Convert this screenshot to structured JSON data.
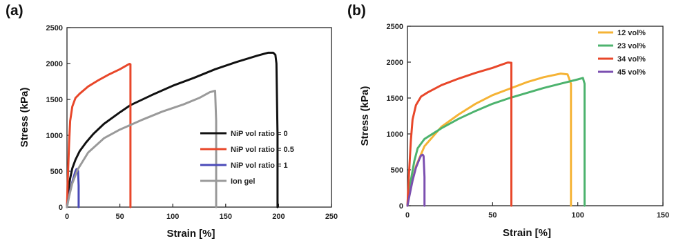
{
  "chart_data": [
    {
      "type": "line",
      "panel_label": "(a)",
      "xlabel": "Strain [%]",
      "ylabel": "Stress (kPa)",
      "xlim": [
        0,
        250
      ],
      "ylim": [
        0,
        2500
      ],
      "xticks": [
        0,
        50,
        100,
        150,
        200,
        250
      ],
      "xtick_labels": [
        "0",
        "50",
        "100",
        "150",
        "200",
        "250"
      ],
      "yticks": [
        0,
        500,
        1000,
        1500,
        2000,
        2500
      ],
      "ytick_labels": [
        "0",
        "500",
        "1000",
        "1500",
        "2000",
        "2500"
      ],
      "grid": false,
      "legend_position": "bottom-right",
      "series": [
        {
          "name": "NiP vol ratio = 0",
          "color": "#111111",
          "x": [
            0,
            1,
            3,
            5,
            8,
            12,
            18,
            25,
            35,
            50,
            60,
            80,
            100,
            120,
            140,
            160,
            180,
            190,
            195,
            197,
            198,
            199,
            199
          ],
          "y": [
            0,
            200,
            400,
            540,
            660,
            780,
            900,
            1020,
            1160,
            1320,
            1420,
            1560,
            1690,
            1800,
            1920,
            2020,
            2110,
            2150,
            2150,
            2120,
            2000,
            1000,
            0
          ]
        },
        {
          "name": "NiP vol ratio = 0.5",
          "color": "#e8472a",
          "x": [
            0,
            0.8,
            2,
            3,
            5,
            8,
            12,
            20,
            30,
            40,
            50,
            56,
            59,
            60,
            60
          ],
          "y": [
            0,
            400,
            900,
            1200,
            1400,
            1520,
            1580,
            1680,
            1770,
            1850,
            1920,
            1970,
            1995,
            1990,
            0
          ]
        },
        {
          "name": "NiP vol ratio = 1",
          "color": "#4a4ab8",
          "x": [
            0,
            1,
            3,
            5,
            7,
            8,
            9,
            10,
            10.5,
            11,
            11
          ],
          "y": [
            0,
            80,
            230,
            350,
            450,
            500,
            530,
            530,
            500,
            300,
            0
          ]
        },
        {
          "name": "Ion gel",
          "color": "#9a9a9a",
          "x": [
            0,
            2,
            5,
            10,
            20,
            35,
            50,
            70,
            90,
            110,
            125,
            135,
            140,
            141,
            141
          ],
          "y": [
            0,
            150,
            330,
            520,
            760,
            960,
            1080,
            1210,
            1330,
            1430,
            1520,
            1600,
            1620,
            1200,
            0
          ]
        }
      ]
    },
    {
      "type": "line",
      "panel_label": "(b)",
      "xlabel": "Strain [%]",
      "ylabel": "Stress (kPa)",
      "xlim": [
        0,
        150
      ],
      "ylim": [
        0,
        2500
      ],
      "xticks": [
        0,
        50,
        100,
        150
      ],
      "xtick_labels": [
        "0",
        "50",
        "100",
        "150"
      ],
      "yticks": [
        0,
        500,
        1000,
        1500,
        2000,
        2500
      ],
      "ytick_labels": [
        "0",
        "500",
        "1000",
        "1500",
        "2000",
        "2500"
      ],
      "grid": false,
      "legend_position": "top-right",
      "series": [
        {
          "name": "12 vol%",
          "color": "#f5b335",
          "x": [
            0,
            2,
            5,
            10,
            20,
            30,
            40,
            50,
            60,
            70,
            80,
            90,
            94,
            96,
            96
          ],
          "y": [
            0,
            250,
            550,
            830,
            1100,
            1270,
            1420,
            1540,
            1630,
            1720,
            1790,
            1840,
            1830,
            1700,
            0
          ]
        },
        {
          "name": "23 vol%",
          "color": "#4db36e",
          "x": [
            0,
            2,
            4,
            6,
            10,
            20,
            30,
            40,
            50,
            60,
            70,
            80,
            90,
            100,
            103,
            104,
            104
          ],
          "y": [
            0,
            350,
            620,
            800,
            930,
            1080,
            1210,
            1320,
            1420,
            1500,
            1570,
            1640,
            1700,
            1760,
            1780,
            1700,
            0
          ]
        },
        {
          "name": "34 vol%",
          "color": "#e8472a",
          "x": [
            0,
            0.8,
            2,
            3,
            5,
            8,
            12,
            20,
            30,
            40,
            50,
            56,
            59,
            61,
            61
          ],
          "y": [
            0,
            400,
            900,
            1200,
            1400,
            1520,
            1580,
            1680,
            1770,
            1850,
            1920,
            1970,
            1995,
            1990,
            0
          ]
        },
        {
          "name": "45 vol%",
          "color": "#7b4fb0",
          "x": [
            0,
            1,
            3,
            5,
            7,
            8,
            9,
            9.5,
            10,
            10
          ],
          "y": [
            0,
            120,
            350,
            530,
            650,
            700,
            710,
            690,
            400,
            0
          ]
        }
      ]
    }
  ]
}
